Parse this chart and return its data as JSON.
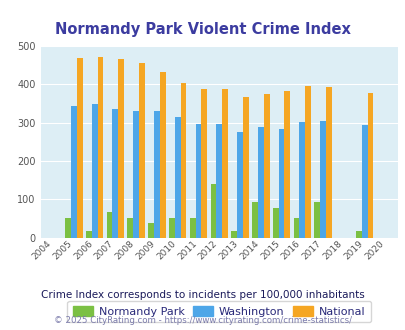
{
  "title": "Normandy Park Violent Crime Index",
  "years": [
    2004,
    2005,
    2006,
    2007,
    2008,
    2009,
    2010,
    2011,
    2012,
    2013,
    2014,
    2015,
    2016,
    2017,
    2018,
    2019,
    2020
  ],
  "normandy_park": [
    0,
    52,
    18,
    67,
    52,
    37,
    52,
    50,
    140,
    18,
    93,
    78,
    50,
    93,
    0,
    18,
    0
  ],
  "washington": [
    0,
    345,
    350,
    335,
    330,
    332,
    315,
    298,
    298,
    277,
    288,
    283,
    303,
    305,
    0,
    293,
    0
  ],
  "national": [
    0,
    470,
    473,
    467,
    455,
    432,
    405,
    388,
    387,
    367,
    376,
    383,
    397,
    394,
    0,
    379,
    0
  ],
  "normandy_color": "#7bc043",
  "washington_color": "#4da6e8",
  "national_color": "#f5a623",
  "bg_color": "#ddeef5",
  "title_color": "#3c3ca0",
  "legend_label_color": "#2a2a7a",
  "subtitle_color": "#1a1a5a",
  "footer_color": "#7a7aaa",
  "footer_link_color": "#4488cc",
  "subtitle": "Crime Index corresponds to incidents per 100,000 inhabitants",
  "footer": "© 2025 CityRating.com - https://www.cityrating.com/crime-statistics/",
  "ylim": [
    0,
    500
  ],
  "yticks": [
    0,
    100,
    200,
    300,
    400,
    500
  ]
}
